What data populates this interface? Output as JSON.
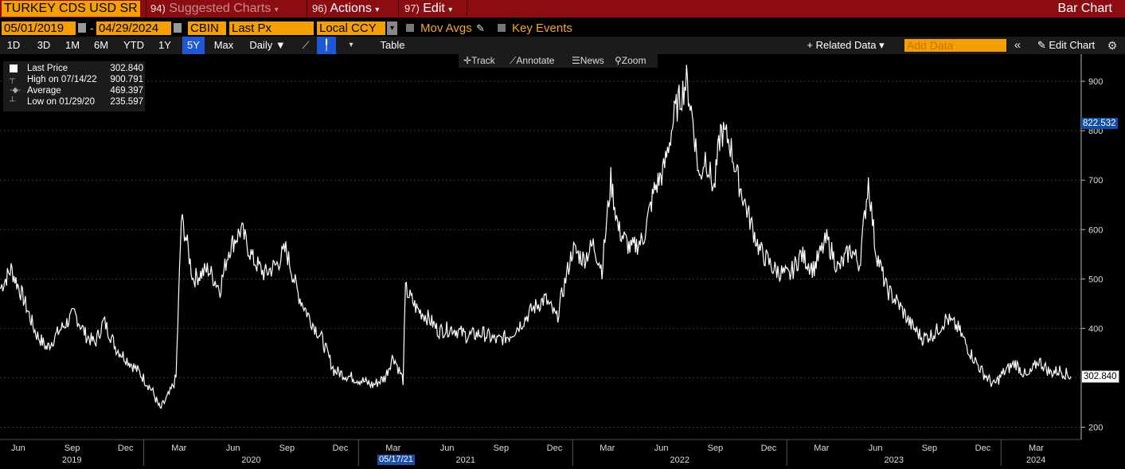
{
  "topbar": {
    "security": "TURKEY CDS USD SR",
    "menus": [
      {
        "num": "94)",
        "label": "Suggested Charts"
      },
      {
        "num": "96)",
        "label": "Actions"
      },
      {
        "num": "97)",
        "label": "Edit"
      }
    ],
    "title": "Bar Chart"
  },
  "controls": {
    "start_date": "05/01/2019",
    "end_date": "04/29/2024",
    "source": "CBIN",
    "field": "Last Px",
    "currency": "Local CCY",
    "mov_avgs": "Mov Avgs",
    "key_events": "Key Events"
  },
  "ranges": [
    "1D",
    "3D",
    "1M",
    "6M",
    "YTD",
    "1Y",
    "5Y",
    "Max"
  ],
  "selected_range": "5Y",
  "frequency": "Daily ▼",
  "table_label": "Table",
  "related_data": "+ Related Data ▾",
  "add_data_placeholder": "Add Data",
  "edit_chart": "Edit Chart",
  "tools": {
    "track": "Track",
    "annotate": "Annotate",
    "news": "News",
    "zoom": "Zoom"
  },
  "legend": [
    {
      "label": "Last Price",
      "value": "302.840"
    },
    {
      "label": "High on 07/14/22",
      "value": "900.791"
    },
    {
      "label": "Average",
      "value": "469.397"
    },
    {
      "label": "Low on 01/29/20",
      "value": "235.597"
    }
  ],
  "tags": {
    "crosshair": "822.532",
    "last": "302.840"
  },
  "cursor_date": "05/17/21",
  "colors": {
    "topbar": "#8b0d12",
    "orange": "#f59f00",
    "selected": "#1f58d6",
    "line": "#ffffff"
  },
  "chart_data": {
    "type": "line",
    "series": [
      {
        "values": [
          [
            "2019-05-01",
            480
          ],
          [
            "2019-05-20",
            520
          ],
          [
            "2019-06-10",
            460
          ],
          [
            "2019-07-01",
            390
          ],
          [
            "2019-07-20",
            360
          ],
          [
            "2019-08-10",
            395
          ],
          [
            "2019-09-05",
            430
          ],
          [
            "2019-09-25",
            385
          ],
          [
            "2019-10-10",
            370
          ],
          [
            "2019-10-25",
            415
          ],
          [
            "2019-11-15",
            360
          ],
          [
            "2019-12-05",
            335
          ],
          [
            "2019-12-25",
            310
          ],
          [
            "2020-01-15",
            275
          ],
          [
            "2020-01-29",
            236
          ],
          [
            "2020-02-15",
            270
          ],
          [
            "2020-02-25",
            300
          ],
          [
            "2020-03-05",
            620
          ],
          [
            "2020-03-12",
            590
          ],
          [
            "2020-03-25",
            500
          ],
          [
            "2020-04-20",
            520
          ],
          [
            "2020-05-10",
            480
          ],
          [
            "2020-05-25",
            560
          ],
          [
            "2020-06-15",
            600
          ],
          [
            "2020-07-05",
            540
          ],
          [
            "2020-07-25",
            510
          ],
          [
            "2020-08-15",
            530
          ],
          [
            "2020-08-30",
            560
          ],
          [
            "2020-09-20",
            470
          ],
          [
            "2020-10-10",
            420
          ],
          [
            "2020-10-30",
            380
          ],
          [
            "2020-11-20",
            315
          ],
          [
            "2020-12-10",
            305
          ],
          [
            "2021-01-05",
            295
          ],
          [
            "2021-01-25",
            285
          ],
          [
            "2021-02-15",
            300
          ],
          [
            "2021-03-01",
            345
          ],
          [
            "2021-03-18",
            295
          ],
          [
            "2021-03-22",
            480
          ],
          [
            "2021-04-10",
            440
          ],
          [
            "2021-05-01",
            420
          ],
          [
            "2021-05-17",
            395
          ],
          [
            "2021-06-10",
            400
          ],
          [
            "2021-07-05",
            385
          ],
          [
            "2021-08-01",
            390
          ],
          [
            "2021-08-25",
            375
          ],
          [
            "2021-09-15",
            385
          ],
          [
            "2021-10-05",
            410
          ],
          [
            "2021-10-25",
            440
          ],
          [
            "2021-11-15",
            460
          ],
          [
            "2021-12-05",
            420
          ],
          [
            "2021-12-20",
            500
          ],
          [
            "2022-01-01",
            560
          ],
          [
            "2022-01-20",
            540
          ],
          [
            "2022-02-05",
            570
          ],
          [
            "2022-02-20",
            520
          ],
          [
            "2022-03-07",
            700
          ],
          [
            "2022-03-20",
            600
          ],
          [
            "2022-04-10",
            560
          ],
          [
            "2022-05-01",
            580
          ],
          [
            "2022-05-20",
            680
          ],
          [
            "2022-06-05",
            720
          ],
          [
            "2022-06-25",
            840
          ],
          [
            "2022-07-14",
            901
          ],
          [
            "2022-07-25",
            820
          ],
          [
            "2022-08-05",
            700
          ],
          [
            "2022-08-15",
            750
          ],
          [
            "2022-08-30",
            680
          ],
          [
            "2022-09-10",
            800
          ],
          [
            "2022-09-25",
            780
          ],
          [
            "2022-10-10",
            700
          ],
          [
            "2022-10-30",
            620
          ],
          [
            "2022-11-15",
            560
          ],
          [
            "2022-12-10",
            520
          ],
          [
            "2023-01-05",
            505
          ],
          [
            "2023-01-25",
            550
          ],
          [
            "2023-02-15",
            520
          ],
          [
            "2023-03-10",
            580
          ],
          [
            "2023-03-30",
            520
          ],
          [
            "2023-04-20",
            560
          ],
          [
            "2023-05-05",
            530
          ],
          [
            "2023-05-20",
            700
          ],
          [
            "2023-06-01",
            560
          ],
          [
            "2023-06-20",
            480
          ],
          [
            "2023-07-10",
            450
          ],
          [
            "2023-07-30",
            410
          ],
          [
            "2023-08-20",
            380
          ],
          [
            "2023-09-10",
            390
          ],
          [
            "2023-09-30",
            420
          ],
          [
            "2023-10-20",
            400
          ],
          [
            "2023-11-10",
            350
          ],
          [
            "2023-12-01",
            310
          ],
          [
            "2023-12-20",
            285
          ],
          [
            "2024-01-05",
            310
          ],
          [
            "2024-01-25",
            330
          ],
          [
            "2024-02-15",
            300
          ],
          [
            "2024-03-05",
            335
          ],
          [
            "2024-03-25",
            310
          ],
          [
            "2024-04-10",
            315
          ],
          [
            "2024-04-29",
            303
          ]
        ]
      }
    ],
    "y_ticks": [
      200,
      300,
      400,
      500,
      600,
      700,
      800,
      900
    ],
    "ylim": [
      175,
      955
    ],
    "x_months": [
      "Jun",
      "Sep",
      "Dec",
      "Mar",
      "Jun",
      "Sep",
      "Dec",
      "Mar",
      "Jun",
      "Sep",
      "Dec",
      "Mar",
      "Jun",
      "Sep",
      "Dec",
      "Mar",
      "Jun",
      "Sep",
      "Dec",
      "Mar"
    ],
    "x_years": [
      "2019",
      "2020",
      "2021",
      "2022",
      "2023",
      "2024"
    ],
    "grid": true
  }
}
